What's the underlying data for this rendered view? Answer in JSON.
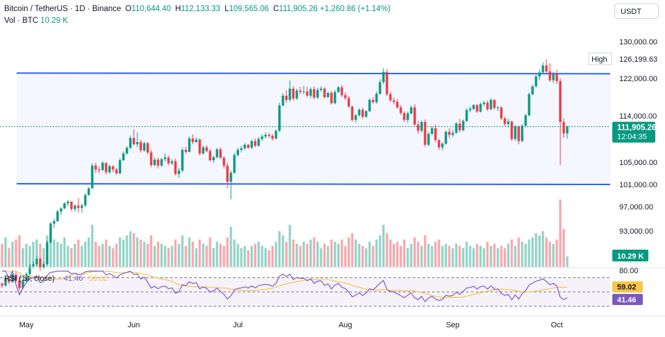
{
  "header": {
    "symbol": "Bitcoin / TetherUS · 1D · Binance",
    "open_label": "O",
    "open": "110,644.40",
    "high_label": "H",
    "high": "112,133.33",
    "low_label": "L",
    "low": "109,565.06",
    "close_label": "C",
    "close": "111,905.26",
    "change": "+1,260.86 (+1.14%)",
    "vol_label": "Vol · BTC",
    "vol_value": "10.29 K"
  },
  "currency_button": "USDT",
  "colors": {
    "up": "#089981",
    "down": "#f23645",
    "channel": "#2962ff",
    "rsi": "#7e57c2",
    "rsi_ma": "#f7c548"
  },
  "chart_data": {
    "type": "candlestick",
    "pair": "BTC/USDT",
    "interval": "1D",
    "exchange": "Binance",
    "y_ticks": [
      130000,
      122000,
      114000,
      105000,
      101000,
      97000,
      93000
    ],
    "y_tick_labels": [
      "130,000.00",
      "122,000.00",
      "114,000.00",
      "105,000.00",
      "101,000.00",
      "97,000.00",
      "93,000.00"
    ],
    "x_labels": [
      {
        "label": "May",
        "index": 7
      },
      {
        "label": "Jun",
        "index": 38
      },
      {
        "label": "Jul",
        "index": 68
      },
      {
        "label": "Aug",
        "index": 99
      },
      {
        "label": "Sep",
        "index": 130
      },
      {
        "label": "Oct",
        "index": 160
      }
    ],
    "high_marker": {
      "label": "High",
      "value": "126,199.63",
      "price": 126199.63
    },
    "last_price": {
      "value": "111,905.26",
      "price": 111905.26,
      "countdown": "12:04:35"
    },
    "volume_last": "10.29 K",
    "channel": {
      "upper": 123000,
      "lower": 101000
    },
    "ohlc": [
      [
        84300,
        84500,
        83600,
        84000
      ],
      [
        84000,
        85200,
        83800,
        85100
      ],
      [
        85100,
        85300,
        84200,
        84600
      ],
      [
        84600,
        86000,
        84400,
        85800
      ],
      [
        85800,
        86400,
        84500,
        84800
      ],
      [
        84800,
        85500,
        83200,
        83600
      ],
      [
        83600,
        85000,
        83400,
        84700
      ],
      [
        84700,
        86200,
        84500,
        85900
      ],
      [
        85900,
        87500,
        85600,
        87200
      ],
      [
        87200,
        88000,
        86800,
        87500
      ],
      [
        87500,
        88800,
        87200,
        88400
      ],
      [
        88400,
        88600,
        86400,
        86900
      ],
      [
        86900,
        87900,
        86700,
        87500
      ],
      [
        87500,
        91400,
        87400,
        91100
      ],
      [
        91100,
        94500,
        91000,
        94200
      ],
      [
        94200,
        95000,
        93500,
        94600
      ],
      [
        94600,
        96500,
        94500,
        96200
      ],
      [
        96200,
        96900,
        95600,
        96700
      ],
      [
        96700,
        97800,
        96600,
        97600
      ],
      [
        97600,
        98200,
        97100,
        97900
      ],
      [
        97900,
        97900,
        96300,
        96600
      ],
      [
        96600,
        97400,
        96200,
        97200
      ],
      [
        97200,
        98500,
        96000,
        96800
      ],
      [
        96800,
        97500,
        96000,
        97200
      ],
      [
        97200,
        99400,
        97000,
        99100
      ],
      [
        99100,
        100500,
        99000,
        100300
      ],
      [
        100300,
        104800,
        100200,
        104400
      ],
      [
        104400,
        104900,
        103100,
        103700
      ],
      [
        103700,
        104200,
        103000,
        103600
      ],
      [
        103600,
        105200,
        103400,
        104900
      ],
      [
        104900,
        104900,
        102800,
        103200
      ],
      [
        103200,
        104600,
        102900,
        104300
      ],
      [
        104300,
        104400,
        103200,
        103700
      ],
      [
        103700,
        104000,
        102700,
        103000
      ],
      [
        103000,
        105800,
        102800,
        105400
      ],
      [
        105400,
        107100,
        105200,
        106700
      ],
      [
        106700,
        108100,
        106500,
        107800
      ],
      [
        107800,
        110200,
        107500,
        109700
      ],
      [
        109700,
        111400,
        108200,
        108500
      ],
      [
        108500,
        110800,
        107900,
        108900
      ],
      [
        108900,
        109400,
        106900,
        107300
      ],
      [
        107300,
        109000,
        107000,
        108700
      ],
      [
        108700,
        108900,
        106500,
        106900
      ],
      [
        106900,
        107400,
        104100,
        104500
      ],
      [
        104500,
        106000,
        104300,
        105500
      ],
      [
        105500,
        105900,
        103900,
        104400
      ],
      [
        104400,
        105800,
        104200,
        105600
      ],
      [
        105600,
        106700,
        105100,
        105900
      ],
      [
        105900,
        106300,
        104400,
        104800
      ],
      [
        104800,
        105600,
        104500,
        105200
      ],
      [
        105200,
        105700,
        102600,
        102900
      ],
      [
        102900,
        104000,
        102200,
        103500
      ],
      [
        103500,
        107800,
        103200,
        107400
      ],
      [
        107400,
        108000,
        106600,
        107000
      ],
      [
        107000,
        110000,
        106900,
        109600
      ],
      [
        109600,
        110400,
        108500,
        108900
      ],
      [
        108900,
        109800,
        108800,
        109400
      ],
      [
        109400,
        109600,
        106300,
        106700
      ],
      [
        106700,
        108200,
        106500,
        107900
      ],
      [
        107900,
        108300,
        106900,
        107200
      ],
      [
        107200,
        107600,
        105100,
        105400
      ],
      [
        105400,
        106300,
        104900,
        106000
      ],
      [
        106000,
        107800,
        105700,
        107500
      ],
      [
        107500,
        107900,
        105600,
        105900
      ],
      [
        105900,
        106100,
        103900,
        104400
      ],
      [
        104400,
        104900,
        100300,
        101500
      ],
      [
        101500,
        103500,
        98300,
        103100
      ],
      [
        103100,
        106800,
        102900,
        106400
      ],
      [
        106400,
        107800,
        106100,
        107400
      ],
      [
        107400,
        108200,
        106900,
        107700
      ],
      [
        107700,
        108700,
        107400,
        108400
      ],
      [
        108400,
        108500,
        107600,
        107800
      ],
      [
        107800,
        109400,
        107600,
        109100
      ],
      [
        109100,
        109600,
        107900,
        108200
      ],
      [
        108200,
        109900,
        108000,
        109500
      ],
      [
        109500,
        110400,
        109100,
        110000
      ],
      [
        110000,
        110800,
        109600,
        110300
      ],
      [
        110300,
        110700,
        109700,
        110100
      ],
      [
        110100,
        110500,
        109200,
        109600
      ],
      [
        109600,
        111400,
        109400,
        111100
      ],
      [
        111100,
        116800,
        110900,
        116200
      ],
      [
        116200,
        118800,
        116000,
        118300
      ],
      [
        118300,
        119400,
        116800,
        117400
      ],
      [
        117400,
        121600,
        117000,
        119800
      ],
      [
        119800,
        120300,
        117200,
        117700
      ],
      [
        117700,
        119800,
        117400,
        119400
      ],
      [
        119400,
        120200,
        118600,
        119100
      ],
      [
        119100,
        120400,
        118600,
        119200
      ],
      [
        119200,
        120200,
        118000,
        118300
      ],
      [
        118300,
        120100,
        117800,
        119700
      ],
      [
        119700,
        120300,
        117500,
        117900
      ],
      [
        117900,
        120000,
        117600,
        119500
      ],
      [
        119500,
        120300,
        119100,
        119800
      ],
      [
        119800,
        120100,
        117700,
        118000
      ],
      [
        118000,
        119100,
        117800,
        118900
      ],
      [
        118900,
        119300,
        116400,
        116700
      ],
      [
        116700,
        119500,
        116500,
        119100
      ],
      [
        119100,
        120300,
        118900,
        120100
      ],
      [
        120100,
        120500,
        118000,
        118400
      ],
      [
        118400,
        119000,
        117400,
        117800
      ],
      [
        117800,
        118200,
        115700,
        116000
      ],
      [
        116000,
        116100,
        112800,
        113200
      ],
      [
        113200,
        114400,
        112700,
        114100
      ],
      [
        114100,
        115600,
        113800,
        115300
      ],
      [
        115300,
        115700,
        113400,
        113800
      ],
      [
        113800,
        115200,
        113600,
        115000
      ],
      [
        115000,
        117800,
        114800,
        117400
      ],
      [
        117400,
        118000,
        116600,
        116900
      ],
      [
        116900,
        119200,
        116600,
        118700
      ],
      [
        118700,
        121800,
        118500,
        121200
      ],
      [
        121200,
        124200,
        120800,
        123400
      ],
      [
        123400,
        124000,
        118200,
        118600
      ],
      [
        118600,
        119100,
        116900,
        117300
      ],
      [
        117300,
        117900,
        116400,
        117000
      ],
      [
        117000,
        117600,
        115500,
        115800
      ],
      [
        115800,
        116300,
        114200,
        114600
      ],
      [
        114600,
        115000,
        112800,
        113200
      ],
      [
        113200,
        114900,
        112600,
        114500
      ],
      [
        114500,
        116200,
        114300,
        115800
      ],
      [
        115800,
        116500,
        112000,
        112300
      ],
      [
        112300,
        113000,
        110500,
        111100
      ],
      [
        111100,
        113100,
        110800,
        112800
      ],
      [
        112800,
        113300,
        108000,
        108400
      ],
      [
        108400,
        110900,
        108100,
        110500
      ],
      [
        110500,
        111900,
        110200,
        111600
      ],
      [
        111600,
        112300,
        108900,
        109300
      ],
      [
        109300,
        109500,
        107400,
        107900
      ],
      [
        107900,
        108900,
        107300,
        108600
      ],
      [
        108600,
        111200,
        108400,
        110900
      ],
      [
        110900,
        111600,
        109600,
        110300
      ],
      [
        110300,
        111200,
        109900,
        110700
      ],
      [
        110700,
        112800,
        110500,
        112500
      ],
      [
        112500,
        113400,
        110800,
        111200
      ],
      [
        111200,
        113300,
        111000,
        113000
      ],
      [
        113000,
        115600,
        112800,
        115200
      ],
      [
        115200,
        116000,
        114700,
        115500
      ],
      [
        115500,
        116500,
        115200,
        116300
      ],
      [
        116300,
        116500,
        114600,
        114900
      ],
      [
        114900,
        116900,
        114700,
        116500
      ],
      [
        116500,
        117200,
        116000,
        116800
      ],
      [
        116800,
        117300,
        115000,
        115400
      ],
      [
        115400,
        117800,
        115200,
        117400
      ],
      [
        117400,
        117500,
        115300,
        115700
      ],
      [
        115700,
        116100,
        115000,
        115800
      ],
      [
        115800,
        116000,
        113200,
        113500
      ],
      [
        113500,
        113800,
        112000,
        112400
      ],
      [
        112400,
        113400,
        111700,
        112900
      ],
      [
        112900,
        113100,
        109100,
        109500
      ],
      [
        109500,
        112200,
        109200,
        111900
      ],
      [
        111900,
        112100,
        108500,
        109100
      ],
      [
        109100,
        112300,
        108900,
        112100
      ],
      [
        112100,
        114400,
        111900,
        114100
      ],
      [
        114100,
        119000,
        113900,
        118600
      ],
      [
        118600,
        120600,
        118400,
        120300
      ],
      [
        120300,
        122800,
        120000,
        122400
      ],
      [
        122400,
        123900,
        121600,
        123300
      ],
      [
        123300,
        125500,
        123000,
        124800
      ],
      [
        124800,
        126199.63,
        123100,
        123500
      ],
      [
        123500,
        125300,
        121200,
        121600
      ],
      [
        121600,
        123500,
        121000,
        122900
      ],
      [
        122900,
        123900,
        120800,
        121400
      ],
      [
        121400,
        122000,
        104500,
        112800
      ],
      [
        112800,
        113500,
        109700,
        110600
      ],
      [
        110600,
        112133.33,
        109565.06,
        111905.26
      ]
    ],
    "volume": [
      22,
      28,
      18,
      24,
      26,
      30,
      18,
      22,
      20,
      24,
      26,
      22,
      18,
      30,
      35,
      26,
      24,
      22,
      28,
      20,
      18,
      22,
      26,
      20,
      24,
      28,
      40,
      24,
      20,
      22,
      26,
      20,
      18,
      22,
      28,
      26,
      30,
      34,
      32,
      28,
      26,
      24,
      22,
      30,
      20,
      24,
      22,
      20,
      18,
      20,
      26,
      22,
      30,
      20,
      28,
      24,
      18,
      26,
      22,
      20,
      28,
      18,
      24,
      22,
      20,
      28,
      38,
      26,
      22,
      18,
      20,
      16,
      20,
      22,
      24,
      20,
      18,
      16,
      20,
      24,
      34,
      30,
      24,
      40,
      26,
      22,
      20,
      24,
      22,
      26,
      28,
      24,
      18,
      22,
      20,
      26,
      24,
      22,
      26,
      20,
      28,
      32,
      26,
      22,
      20,
      18,
      24,
      20,
      26,
      30,
      40,
      32,
      26,
      22,
      24,
      20,
      26,
      18,
      22,
      28,
      24,
      20,
      30,
      22,
      20,
      24,
      26,
      20,
      22,
      20,
      18,
      22,
      20,
      18,
      24,
      20,
      18,
      22,
      20,
      18,
      24,
      20,
      22,
      18,
      20,
      18,
      22,
      26,
      20,
      28,
      24,
      22,
      26,
      28,
      32,
      30,
      34,
      28,
      24,
      22,
      26,
      64,
      36,
      10
    ],
    "rsi": {
      "label": "RSI (14, close)",
      "value": "41.46",
      "ma_value": "59.02",
      "levels": [
        70,
        50,
        30
      ],
      "axis_label": "80.00",
      "ylim": [
        20,
        80
      ]
    }
  }
}
